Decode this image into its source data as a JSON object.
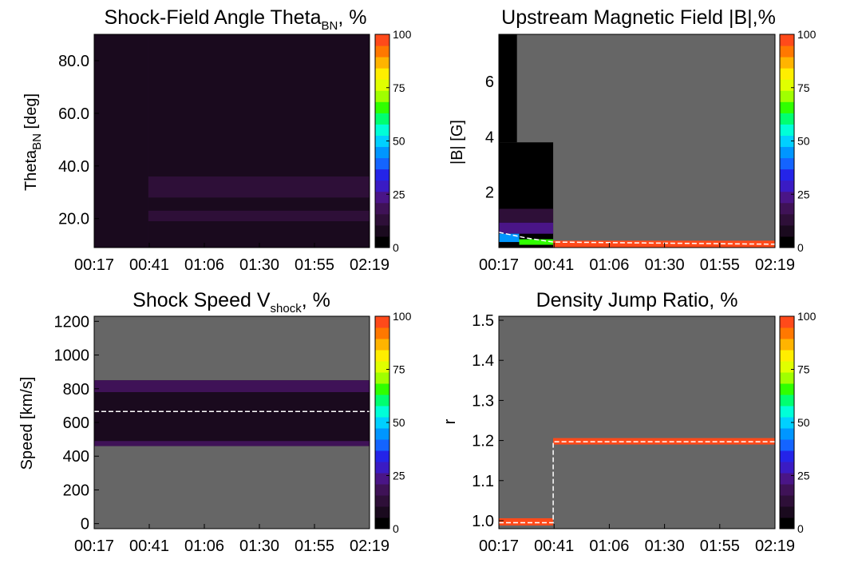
{
  "colors": {
    "background": "#ffffff",
    "missing": "#666666",
    "colorbar": [
      "#000000",
      "#1a0a1e",
      "#2e0f38",
      "#3f1257",
      "#4a1587",
      "#3a1bc4",
      "#2424e8",
      "#1464ff",
      "#0096ff",
      "#00d0ff",
      "#00ffd8",
      "#00ff70",
      "#30ff00",
      "#a0ff00",
      "#e0ff00",
      "#ffee00",
      "#ffb400",
      "#ff7800",
      "#ff4a1a"
    ],
    "median_line": "#ffffff",
    "highlight": "#ff0000"
  },
  "chart_data": [
    {
      "type": "heatmap",
      "title": "Shock-Field Angle Theta",
      "title_sub": "BN",
      "title_suffix": ", %",
      "ylabel": "Theta",
      "ylabel_sub": "BN",
      "ylabel_suffix": " [deg]",
      "xlabel": "",
      "x_ticks": [
        "00:17",
        "00:41",
        "01:06",
        "01:30",
        "01:55",
        "02:19"
      ],
      "y_ticks": [
        {
          "value": 20,
          "label": "20.0"
        },
        {
          "value": 40,
          "label": "40.0"
        },
        {
          "value": 60,
          "label": "60.0"
        },
        {
          "value": 80,
          "label": "80.0"
        }
      ],
      "ylim": [
        9,
        90
      ],
      "colorbar_ticks": [
        "0",
        "25",
        "50",
        "75",
        "100"
      ],
      "colorbar_range": [
        0,
        100
      ],
      "data_note": "nearly uniform low percentages (~3-10%) across all theta bins after 00:41; darker before 00:41",
      "bands": [
        {
          "t_start": "00:17",
          "t_end": "00:41",
          "y_range": [
            9,
            90
          ],
          "percent": 6
        },
        {
          "t_start": "00:41",
          "t_end": "02:19",
          "y_range": [
            9,
            90
          ],
          "percent": 8
        },
        {
          "t_start": "00:41",
          "t_end": "02:19",
          "y_range": [
            28,
            36
          ],
          "percent": 11
        },
        {
          "t_start": "00:41",
          "t_end": "02:19",
          "y_range": [
            19,
            23
          ],
          "percent": 12
        }
      ]
    },
    {
      "type": "heatmap",
      "title": "Upstream Magnetic Field |B|,%",
      "ylabel": "|B| [G]",
      "xlabel": "",
      "x_ticks": [
        "00:17",
        "00:41",
        "01:06",
        "01:30",
        "01:55",
        "02:19"
      ],
      "y_ticks": [
        {
          "value": 2,
          "label": "2"
        },
        {
          "value": 4,
          "label": "4"
        },
        {
          "value": 6,
          "label": "6"
        }
      ],
      "ylim": [
        0,
        7.7
      ],
      "colorbar_ticks": [
        "0",
        "25",
        "50",
        "75",
        "100"
      ],
      "colorbar_range": [
        0,
        100
      ],
      "median": [
        {
          "t": "00:17",
          "value": 0.55
        },
        {
          "t": "00:29",
          "value": 0.35
        },
        {
          "t": "00:41",
          "value": 0.2
        },
        {
          "t": "02:19",
          "value": 0.12
        }
      ],
      "bands": [
        {
          "t_start": "00:17",
          "t_end": "00:41",
          "y_range": [
            0,
            3.8
          ],
          "percent": 2
        },
        {
          "t_start": "00:17",
          "t_end": "00:25",
          "y_range": [
            3.8,
            7.7
          ],
          "percent": 2
        },
        {
          "t_start": "00:17",
          "t_end": "00:41",
          "y_range": [
            0.9,
            1.4
          ],
          "percent": 10
        },
        {
          "t_start": "00:17",
          "t_end": "00:41",
          "y_range": [
            0.5,
            0.9
          ],
          "percent": 22
        },
        {
          "t_start": "00:17",
          "t_end": "00:26",
          "y_range": [
            0.2,
            0.5
          ],
          "percent": 45
        },
        {
          "t_start": "00:26",
          "t_end": "00:41",
          "y_range": [
            0.1,
            0.3
          ],
          "percent": 68
        },
        {
          "t_start": "00:41",
          "t_end": "02:19",
          "y_range": [
            0.0,
            0.25
          ],
          "percent": 100
        }
      ]
    },
    {
      "type": "heatmap",
      "title": "Shock Speed V",
      "title_sub": "shock",
      "title_suffix": ", %",
      "ylabel": "Speed [km/s]",
      "xlabel": "",
      "x_ticks": [
        "00:17",
        "00:41",
        "01:06",
        "01:30",
        "01:55",
        "02:19"
      ],
      "y_ticks": [
        {
          "value": 0,
          "label": "0"
        },
        {
          "value": 200,
          "label": "200"
        },
        {
          "value": 400,
          "label": "400"
        },
        {
          "value": 600,
          "label": "600"
        },
        {
          "value": 800,
          "label": "800"
        },
        {
          "value": 1000,
          "label": "1000"
        },
        {
          "value": 1200,
          "label": "1200"
        }
      ],
      "ylim": [
        -30,
        1230
      ],
      "colorbar_ticks": [
        "0",
        "25",
        "50",
        "75",
        "100"
      ],
      "colorbar_range": [
        0,
        100
      ],
      "median": [
        {
          "t": "00:17",
          "value": 665
        },
        {
          "t": "02:19",
          "value": 665
        }
      ],
      "bands": [
        {
          "t_start": "00:17",
          "t_end": "02:19",
          "y_range": [
            460,
            850
          ],
          "percent": 8
        },
        {
          "t_start": "00:17",
          "t_end": "02:19",
          "y_range": [
            460,
            490
          ],
          "percent": 18
        },
        {
          "t_start": "00:17",
          "t_end": "02:19",
          "y_range": [
            780,
            850
          ],
          "percent": 18
        }
      ]
    },
    {
      "type": "heatmap",
      "title": "Density Jump Ratio, %",
      "ylabel": "r",
      "xlabel": "",
      "x_ticks": [
        "00:17",
        "00:41",
        "01:06",
        "01:30",
        "01:55",
        "02:19"
      ],
      "y_ticks": [
        {
          "value": 1.0,
          "label": "1.0"
        },
        {
          "value": 1.1,
          "label": "1.1"
        },
        {
          "value": 1.2,
          "label": "1.2"
        },
        {
          "value": 1.3,
          "label": "1.3"
        },
        {
          "value": 1.4,
          "label": "1.4"
        },
        {
          "value": 1.5,
          "label": "1.5"
        }
      ],
      "ylim": [
        0.98,
        1.51
      ],
      "colorbar_ticks": [
        "0",
        "25",
        "50",
        "75",
        "100"
      ],
      "colorbar_range": [
        0,
        100
      ],
      "median": [
        {
          "t": "00:17",
          "value": 0.995
        },
        {
          "t": "00:41",
          "value": 0.995
        },
        {
          "t": "00:41",
          "value": 1.197
        },
        {
          "t": "02:19",
          "value": 1.197
        }
      ],
      "bands": [
        {
          "t_start": "00:17",
          "t_end": "00:41",
          "y_range": [
            0.988,
            1.006
          ],
          "percent": 100
        },
        {
          "t_start": "00:41",
          "t_end": "02:19",
          "y_range": [
            1.19,
            1.206
          ],
          "percent": 100
        }
      ]
    }
  ]
}
